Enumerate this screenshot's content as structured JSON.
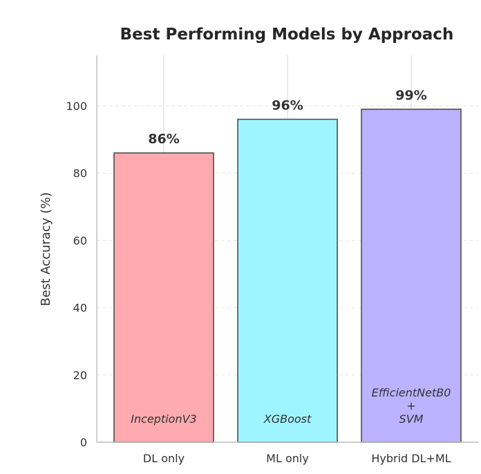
{
  "chart_data": {
    "type": "bar",
    "title": "Best Performing Models by Approach",
    "xlabel": "",
    "ylabel": "Best Accuracy (%)",
    "ylim": [
      0,
      115
    ],
    "yticks": [
      0,
      20,
      40,
      60,
      80,
      100
    ],
    "grid": "horizontal dashed and vertical at categories",
    "categories": [
      "DL only",
      "ML only",
      "Hybrid DL+ML"
    ],
    "values": [
      86,
      96,
      99
    ],
    "value_labels": [
      "86%",
      "96%",
      "99%"
    ],
    "model_labels": [
      [
        "InceptionV3"
      ],
      [
        "XGBoost"
      ],
      [
        "EfficientNetB0",
        "+",
        "SVM"
      ]
    ],
    "colors": [
      "#ffaaaf",
      "#9ef5ff",
      "#bdb2ff"
    ],
    "edge_color": "#4d4d4d"
  }
}
